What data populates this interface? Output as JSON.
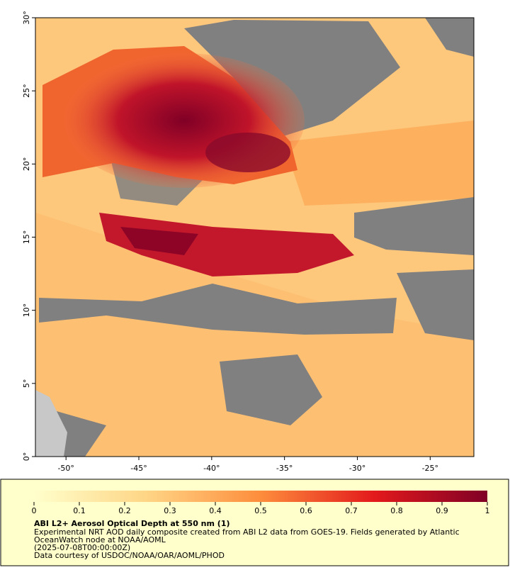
{
  "map": {
    "xlim": [
      -52.1,
      -22
    ],
    "ylim": [
      0,
      30
    ],
    "xticks": [
      {
        "value": -50,
        "label": "-50°"
      },
      {
        "value": -45,
        "label": "-45°"
      },
      {
        "value": -40,
        "label": "-40°"
      },
      {
        "value": -35,
        "label": "-35°"
      },
      {
        "value": -30,
        "label": "-30°"
      },
      {
        "value": -25,
        "label": "-25°"
      }
    ],
    "yticks": [
      {
        "value": 0,
        "label": "0°"
      },
      {
        "value": 5,
        "label": "5°"
      },
      {
        "value": 10,
        "label": "10°"
      },
      {
        "value": 15,
        "label": "15°"
      },
      {
        "value": 20,
        "label": "20°"
      },
      {
        "value": 25,
        "label": "25°"
      },
      {
        "value": 30,
        "label": "30°"
      }
    ]
  },
  "colorbar": {
    "range": [
      0,
      1
    ],
    "ticks": [
      0,
      0.1,
      0.2,
      0.3,
      0.4,
      0.5,
      0.6,
      0.7,
      0.8,
      0.9,
      1
    ]
  },
  "legend": {
    "title": "ABI L2+ Aerosol Optical Depth at 550 nm (1)",
    "lines": [
      "Experimental NRT AOD daily composite created from ABI L2 data from GOES-19. Fields generated by Atlantic",
      "OceanWatch node at NOAA/AOML",
      "(2025-07-08T00:00:00Z)",
      "Data courtesy of USDOC/NOAA/OAR/AOML/PHOD"
    ]
  }
}
